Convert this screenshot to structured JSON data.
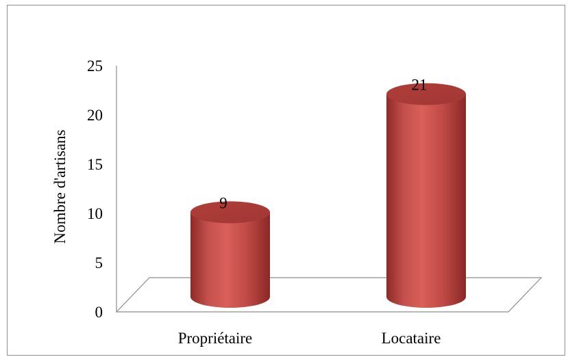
{
  "chart_data": {
    "type": "bar",
    "style": "3d-cylinder",
    "categories": [
      "Propriétaire",
      "Locataire"
    ],
    "values": [
      9,
      21
    ],
    "data_labels": [
      "9",
      "21"
    ],
    "title": "",
    "xlabel": "",
    "ylabel": "Nombre d'artisans",
    "ylim": [
      0,
      25
    ],
    "yticks": [
      "0",
      "5",
      "10",
      "15",
      "20",
      "25"
    ],
    "grid": false,
    "legend": "none",
    "bar_color": "#c0504d"
  }
}
